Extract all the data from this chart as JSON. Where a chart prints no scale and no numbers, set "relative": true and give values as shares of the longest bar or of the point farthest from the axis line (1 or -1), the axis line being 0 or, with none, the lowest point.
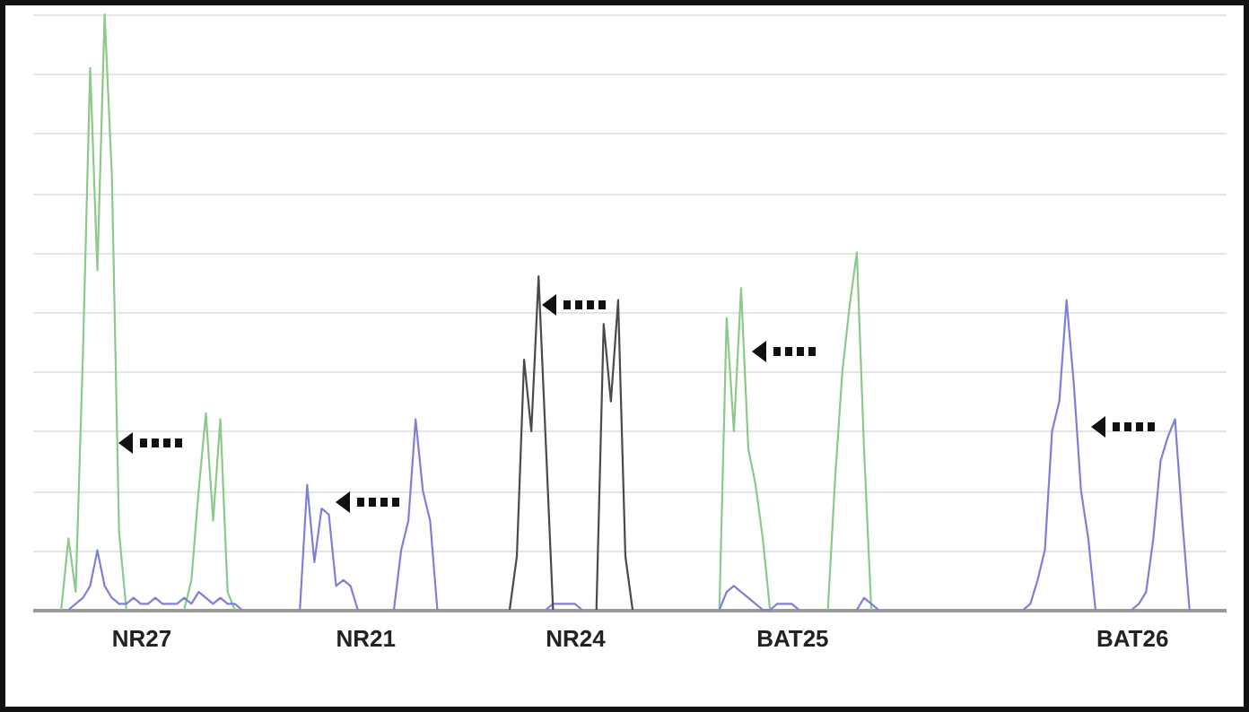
{
  "chart_data": {
    "type": "line",
    "relative": true,
    "grid": "y",
    "categories": [
      null,
      null,
      null,
      null,
      null,
      null,
      null,
      null,
      null,
      null,
      null,
      null,
      null,
      null,
      null,
      "NR27",
      null,
      null,
      null,
      null,
      null,
      null,
      null,
      null,
      null,
      null,
      null,
      null,
      null,
      null,
      null,
      null,
      null,
      null,
      null,
      null,
      null,
      null,
      null,
      null,
      null,
      null,
      null,
      null,
      null,
      null,
      "NR21",
      null,
      null,
      null,
      null,
      null,
      null,
      null,
      null,
      null,
      null,
      null,
      null,
      null,
      null,
      null,
      null,
      null,
      null,
      null,
      null,
      null,
      null,
      null,
      null,
      null,
      null,
      null,
      null,
      "NR24",
      null,
      null,
      null,
      null,
      null,
      null,
      null,
      null,
      null,
      null,
      null,
      null,
      null,
      null,
      null,
      null,
      null,
      null,
      null,
      null,
      null,
      null,
      null,
      null,
      null,
      null,
      null,
      null,
      null,
      "BAT25",
      null,
      null,
      null,
      null,
      null,
      null,
      null,
      null,
      null,
      null,
      null,
      null,
      null,
      null,
      null,
      null,
      null,
      null,
      null,
      null,
      null,
      null,
      null,
      null,
      null,
      null,
      null,
      null,
      null,
      null,
      null,
      null,
      null,
      null,
      null,
      null,
      null,
      null,
      null,
      null,
      null,
      null,
      null,
      null,
      null,
      null,
      "BAT26",
      null,
      null,
      null,
      null,
      null,
      null,
      null,
      null,
      null,
      null,
      null,
      null,
      null
    ],
    "series": [
      {
        "color": "#8cc98a",
        "values": [
          null,
          null,
          null,
          null,
          0,
          0.12,
          0.03,
          0.43,
          0.91,
          0.57,
          1,
          0.73,
          0.13,
          0,
          null,
          null,
          null,
          null,
          null,
          null,
          null,
          0,
          0.05,
          0.2,
          0.33,
          0.15,
          0.32,
          0.03,
          0,
          null,
          null,
          null,
          null,
          null,
          null,
          null,
          null,
          null,
          null,
          null,
          null,
          null,
          null,
          null,
          null,
          null,
          null,
          null,
          null,
          null,
          null,
          null,
          null,
          null,
          null,
          null,
          null,
          null,
          null,
          null,
          null,
          null,
          null,
          null,
          null,
          null,
          null,
          null,
          null,
          null,
          null,
          null,
          null,
          null,
          null,
          null,
          null,
          null,
          null,
          null,
          null,
          null,
          null,
          null,
          null,
          null,
          null,
          null,
          null,
          null,
          null,
          null,
          null,
          null,
          null,
          0,
          0.49,
          0.3,
          0.54,
          0.27,
          0.21,
          0.12,
          0,
          null,
          null,
          null,
          null,
          null,
          null,
          null,
          0,
          0.22,
          0.4,
          0.51,
          0.6,
          0.27,
          0,
          null,
          null,
          null,
          null,
          null,
          null,
          null,
          null,
          null,
          null,
          null,
          null,
          null,
          null,
          null,
          null,
          null,
          null,
          null,
          null,
          null,
          null,
          null,
          null,
          null,
          null,
          null,
          null,
          null,
          null,
          null,
          null,
          null,
          null,
          null,
          null,
          null,
          null,
          null,
          null,
          null,
          null,
          null,
          null,
          null,
          null,
          null,
          null,
          null
        ]
      },
      {
        "color": "#7f7fd8",
        "values": [
          null,
          null,
          null,
          null,
          null,
          0,
          0.01,
          0.02,
          0.04,
          0.1,
          0.04,
          0.02,
          0.01,
          0.01,
          0.02,
          0.01,
          0.01,
          0.02,
          0.01,
          0.01,
          0.01,
          0.02,
          0.01,
          0.03,
          0.02,
          0.01,
          0.02,
          0.01,
          0.01,
          0,
          null,
          null,
          null,
          null,
          null,
          null,
          null,
          0,
          0.21,
          0.08,
          0.17,
          0.16,
          0.04,
          0.05,
          0.04,
          0,
          null,
          null,
          null,
          null,
          0,
          0.1,
          0.15,
          0.32,
          0.2,
          0.15,
          0,
          null,
          null,
          null,
          null,
          null,
          null,
          null,
          null,
          null,
          null,
          null,
          null,
          null,
          null,
          0,
          0.01,
          0.01,
          0.01,
          0.01,
          0,
          null,
          null,
          null,
          null,
          null,
          null,
          null,
          null,
          null,
          null,
          null,
          null,
          null,
          null,
          null,
          null,
          null,
          null,
          0,
          0.03,
          0.04,
          0.03,
          0.02,
          0.01,
          0,
          0,
          0.01,
          0.01,
          0.01,
          0,
          null,
          null,
          null,
          null,
          null,
          null,
          null,
          0,
          0.02,
          0.01,
          0,
          null,
          null,
          null,
          null,
          null,
          null,
          null,
          null,
          null,
          null,
          null,
          null,
          null,
          null,
          null,
          null,
          null,
          null,
          null,
          0,
          0.01,
          0.05,
          0.1,
          0.3,
          0.35,
          0.52,
          0.38,
          0.2,
          0.12,
          0,
          null,
          null,
          null,
          null,
          0,
          0.01,
          0.03,
          0.12,
          0.25,
          0.29,
          0.32,
          0.15,
          0,
          null,
          null,
          null,
          null,
          null
        ]
      },
      {
        "color": "#4a4a4a",
        "values": [
          null,
          null,
          null,
          null,
          null,
          null,
          null,
          null,
          null,
          null,
          null,
          null,
          null,
          null,
          null,
          null,
          null,
          null,
          null,
          null,
          null,
          null,
          null,
          null,
          null,
          null,
          null,
          null,
          null,
          null,
          null,
          null,
          null,
          null,
          null,
          null,
          null,
          null,
          null,
          null,
          null,
          null,
          null,
          null,
          null,
          null,
          null,
          null,
          null,
          null,
          null,
          null,
          null,
          null,
          null,
          null,
          null,
          null,
          null,
          null,
          null,
          null,
          null,
          null,
          null,
          null,
          0,
          0.09,
          0.42,
          0.3,
          0.56,
          0.28,
          0,
          null,
          null,
          null,
          null,
          null,
          0,
          0.48,
          0.35,
          0.52,
          0.09,
          0,
          null,
          null,
          null,
          null,
          null,
          null,
          null,
          null,
          null,
          null,
          null,
          null,
          null,
          null,
          null,
          null,
          null,
          null,
          null,
          null,
          null,
          null,
          null,
          null,
          null,
          null,
          null,
          null,
          null,
          null,
          null,
          null,
          null,
          null,
          null,
          null,
          null,
          null,
          null,
          null,
          null,
          null,
          null,
          null,
          null,
          null,
          null,
          null,
          null,
          null,
          null,
          null,
          null,
          null,
          null,
          null,
          null,
          null,
          null,
          null,
          null,
          null,
          null,
          null,
          null,
          null,
          null,
          null,
          null,
          null,
          null,
          null,
          null,
          null,
          null,
          null,
          null,
          null,
          null,
          null,
          null,
          null
        ]
      }
    ]
  }
}
